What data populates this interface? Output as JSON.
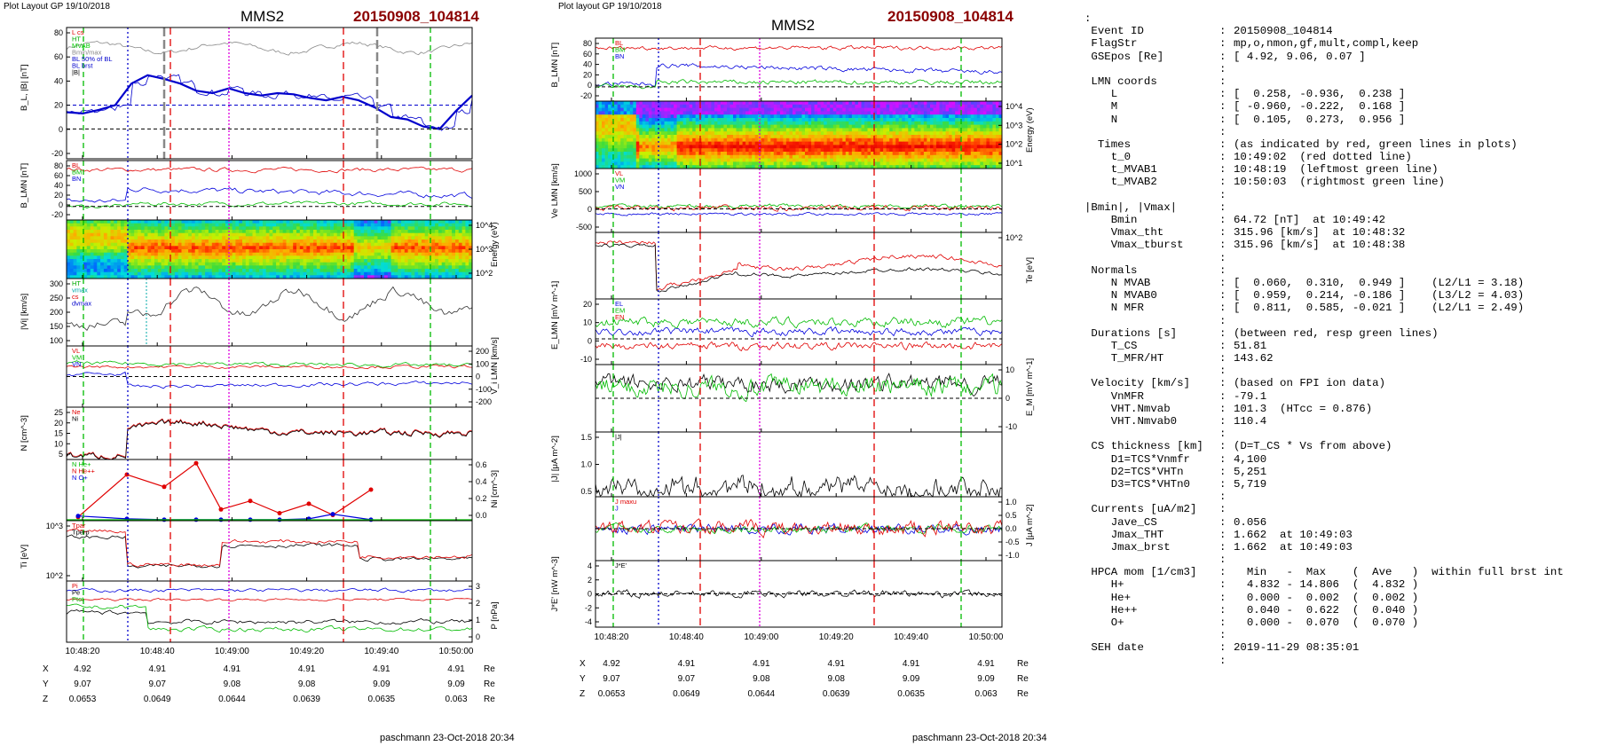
{
  "left_panel": {
    "header": "Plot Layout GP 19/10/2018",
    "title": "MMS2",
    "event": "20150908_104814",
    "footer": "paschmann 23-Oct-2018 20:34",
    "time_ticks": [
      "10:48:20",
      "10:48:40",
      "10:49:00",
      "10:49:20",
      "10:49:40",
      "10:50:00"
    ],
    "pos_rows": [
      {
        "label": "X",
        "values": [
          "4.92",
          "4.91",
          "4.91",
          "4.91",
          "4.91",
          "4.91"
        ],
        "unit": "Re"
      },
      {
        "label": "Y",
        "values": [
          "9.07",
          "9.07",
          "9.08",
          "9.08",
          "9.09",
          "9.09"
        ],
        "unit": "Re"
      },
      {
        "label": "Z",
        "values": [
          "0.0653",
          "0.0649",
          "0.0644",
          "0.0639",
          "0.0635",
          "0.063"
        ],
        "unit": "Re"
      }
    ]
  },
  "middle_panel": {
    "header": "Plot layout GP 19/10/2018",
    "title": "MMS2",
    "event": "20150908_104814",
    "footer": "paschmann 23-Oct-2018 20:34",
    "time_ticks": [
      "10:48:20",
      "10:48:40",
      "10:49:00",
      "10:49:20",
      "10:49:40",
      "10:50:00"
    ],
    "pos_rows": [
      {
        "label": "X",
        "values": [
          "4.92",
          "4.91",
          "4.91",
          "4.91",
          "4.91",
          "4.91"
        ],
        "unit": "Re"
      },
      {
        "label": "Y",
        "values": [
          "9.07",
          "9.07",
          "9.08",
          "9.08",
          "9.09",
          "9.09"
        ],
        "unit": "Re"
      },
      {
        "label": "Z",
        "values": [
          "0.0653",
          "0.0649",
          "0.0644",
          "0.0639",
          "0.0635",
          "0.063"
        ],
        "unit": "Re"
      }
    ]
  },
  "info": [
    {
      "k": "",
      "v": "",
      "colon": true
    },
    {
      "k": " Event ID",
      "v": "20150908_104814"
    },
    {
      "k": " FlagStr",
      "v": "mp,o,nmon,gf,mult,compl,keep"
    },
    {
      "k": " GSEpos [Re]",
      "v": "[ 4.92, 9.06, 0.07 ]"
    },
    {
      "k": "",
      "v": ""
    },
    {
      "k": " LMN coords",
      "v": ""
    },
    {
      "k": "    L",
      "v": "[  0.258, -0.936,  0.238 ]"
    },
    {
      "k": "    M",
      "v": "[ -0.960, -0.222,  0.168 ]"
    },
    {
      "k": "    N",
      "v": "[  0.105,  0.273,  0.956 ]"
    },
    {
      "k": "",
      "v": ""
    },
    {
      "k": "  Times",
      "v": "(as indicated by red, green lines in plots)"
    },
    {
      "k": "    t_0",
      "v": "10:49:02  (red dotted line)"
    },
    {
      "k": "    t_MVAB1",
      "v": "10:48:19  (leftmost green line)"
    },
    {
      "k": "    t_MVAB2",
      "v": "10:50:03  (rightmost green line)"
    },
    {
      "k": "",
      "v": ""
    },
    {
      "k": "|Bmin|, |Vmax|",
      "v": ""
    },
    {
      "k": "    Bmin",
      "v": "64.72 [nT]  at 10:49:42"
    },
    {
      "k": "    Vmax_tht",
      "v": "315.96 [km/s]  at 10:48:32"
    },
    {
      "k": "    Vmax_tburst",
      "v": "315.96 [km/s]  at 10:48:38"
    },
    {
      "k": "",
      "v": ""
    },
    {
      "k": " Normals",
      "v": ""
    },
    {
      "k": "    N MVAB",
      "v": "[  0.060,  0.310,  0.949 ]    (L2/L1 = 3.18)"
    },
    {
      "k": "    N MVAB0",
      "v": "[  0.959,  0.214, -0.186 ]    (L3/L2 = 4.03)"
    },
    {
      "k": "    N MFR",
      "v": "[  0.811,  0.585, -0.021 ]    (L2/L1 = 2.49)"
    },
    {
      "k": "",
      "v": ""
    },
    {
      "k": " Durations [s]",
      "v": "(between red, resp green lines)"
    },
    {
      "k": "    T_CS",
      "v": "51.81"
    },
    {
      "k": "    T_MFR/HT",
      "v": "143.62"
    },
    {
      "k": "",
      "v": ""
    },
    {
      "k": " Velocity [km/s]",
      "v": "(based on FPI ion data)"
    },
    {
      "k": "    VnMFR",
      "v": "-79.1"
    },
    {
      "k": "    VHT.Nmvab",
      "v": "101.3  (HTcc = 0.876)"
    },
    {
      "k": "    VHT.Nmvab0",
      "v": "110.4"
    },
    {
      "k": "",
      "v": ""
    },
    {
      "k": " CS thickness [km]",
      "v": "(D=T_CS * Vs from above)"
    },
    {
      "k": "    D1=TCS*Vnmfr",
      "v": "4,100"
    },
    {
      "k": "    D2=TCS*VHTn",
      "v": "5,251"
    },
    {
      "k": "    D3=TCS*VHTn0",
      "v": "5,719"
    },
    {
      "k": "",
      "v": ""
    },
    {
      "k": " Currents [uA/m2]",
      "v": ""
    },
    {
      "k": "    Jave_CS",
      "v": "0.056"
    },
    {
      "k": "    Jmax_THT",
      "v": "1.662  at 10:49:03"
    },
    {
      "k": "    Jmax_brst",
      "v": "1.662  at 10:49:03"
    },
    {
      "k": "",
      "v": ""
    },
    {
      "k": " HPCA mom [1/cm3]",
      "v": "  Min   -  Max    (  Ave   )  within full brst int"
    },
    {
      "k": "    H+",
      "v": "  4.832 - 14.806  (  4.832 )"
    },
    {
      "k": "    He+",
      "v": "  0.000 -  0.002  (  0.002 )"
    },
    {
      "k": "    He++",
      "v": "  0.040 -  0.622  (  0.040 )"
    },
    {
      "k": "    O+",
      "v": "  0.000 -  0.070  (  0.070 )"
    },
    {
      "k": "",
      "v": ""
    },
    {
      "k": " SEH date",
      "v": "2019-11-29 08:35:01"
    },
    {
      "k": "",
      "v": ""
    }
  ],
  "chart_data": [
    {
      "type": "line",
      "panel": "left",
      "ylabel": "B_L, |B| [nT]",
      "yticks": [
        "80",
        "60",
        "40",
        "20",
        "0",
        "-20"
      ],
      "legend": [
        "L cs",
        "HT",
        "MVAB",
        "Bmin/max",
        "BL 50% of BL",
        "BL brst",
        "|B|"
      ],
      "colors": [
        "#e00000",
        "#00aa00",
        "#00cc00",
        "#888888",
        "#0000cc",
        "#0000cc",
        "#000000"
      ],
      "series": [
        {
          "values": [
            68,
            70,
            72,
            70,
            67,
            69,
            71,
            70,
            66,
            64,
            67,
            69,
            68,
            66,
            65,
            67,
            70,
            69,
            66,
            68,
            71,
            73,
            70,
            68,
            69,
            70
          ]
        },
        {
          "values": [
            14,
            13,
            16,
            20,
            38,
            45,
            42,
            38,
            32,
            30,
            34,
            30,
            28,
            30,
            29,
            26,
            24,
            27,
            24,
            18,
            10,
            8,
            2,
            0,
            15,
            28
          ]
        }
      ]
    },
    {
      "type": "line",
      "panel": "left",
      "ylabel": "B_LMN [nT]",
      "yticks": [
        "80",
        "60",
        "40",
        "20",
        "0",
        "-20"
      ],
      "legend": [
        "BL",
        "BM",
        "BN"
      ],
      "colors": [
        "#e00000",
        "#00bb00",
        "#0000dd"
      ]
    },
    {
      "type": "heatmap",
      "panel": "left",
      "ylabel": "Energy (eV)",
      "yticks": [
        "10^4",
        "10^3",
        "10^2"
      ]
    },
    {
      "type": "line",
      "panel": "left",
      "ylabel": "|Vi| [km/s]",
      "yticks": [
        "300",
        "250",
        "200",
        "150",
        "100"
      ],
      "legend": [
        "HT",
        "vmax",
        "cs",
        "dvmax"
      ],
      "colors": [
        "#00aa00",
        "#00aaaa",
        "#e00000",
        "#0000cc"
      ]
    },
    {
      "type": "line",
      "panel": "left",
      "ylabel": "V_i LMN [km/s]",
      "yticks": [
        "200",
        "100",
        "0",
        "-100",
        "-200"
      ],
      "legend": [
        "VL",
        "VM",
        "VN"
      ],
      "colors": [
        "#e00000",
        "#00bb00",
        "#0000dd"
      ]
    },
    {
      "type": "line",
      "panel": "left",
      "ylabel": "N [cm^-3]",
      "yticks": [
        "25",
        "20",
        "15",
        "10",
        "5"
      ],
      "legend": [
        "Ne",
        "Ni"
      ],
      "colors": [
        "#e00000",
        "#000000"
      ]
    },
    {
      "type": "line",
      "panel": "left",
      "ylabel": "Ni [cm^-3]",
      "yticks": [
        "0.6",
        "0.4",
        "0.2",
        "0.0"
      ],
      "legend": [
        "N He+",
        "N He++",
        "N O+"
      ],
      "colors": [
        "#00bb00",
        "#e00000",
        "#0000dd"
      ],
      "series": [
        {
          "name": "N He++",
          "x": [
            "10:48:14",
            "10:48:30",
            "10:48:44",
            "10:48:54",
            "10:49:06",
            "10:49:18",
            "10:49:30",
            "10:49:42",
            "10:49:52",
            "10:50:06"
          ],
          "values": [
            0.04,
            0.49,
            0.36,
            0.61,
            0.12,
            0.21,
            0.08,
            0.18,
            0.06,
            0.33
          ]
        },
        {
          "name": "N O+",
          "x": [
            "10:48:14",
            "10:48:30",
            "10:48:44",
            "10:48:54",
            "10:49:06",
            "10:49:18",
            "10:49:30",
            "10:49:42",
            "10:49:52",
            "10:50:06"
          ],
          "values": [
            0.05,
            0.02,
            0.01,
            0.01,
            0.01,
            0.01,
            0.01,
            0.02,
            0.07,
            0.01
          ]
        }
      ]
    },
    {
      "type": "line",
      "panel": "left",
      "ylabel": "Ti [eV]",
      "yticks": [
        "10^3",
        "10^2"
      ],
      "legend": [
        "Tpar",
        "Tperp"
      ],
      "colors": [
        "#e00000",
        "#000000"
      ]
    },
    {
      "type": "line",
      "panel": "left",
      "ylabel": "P [nPa]",
      "yticks": [
        "3",
        "2",
        "1",
        "0"
      ],
      "legend": [
        "Pi",
        "Pe",
        "Ptot"
      ],
      "colors": [
        "#e00000",
        "#000000",
        "#00bb00"
      ]
    },
    {
      "type": "line",
      "panel": "middle",
      "ylabel": "B_LMN [nT]",
      "yticks": [
        "80",
        "60",
        "40",
        "20",
        "0",
        "-20"
      ],
      "legend": [
        "BL",
        "BM",
        "BN"
      ],
      "colors": [
        "#e00000",
        "#00bb00",
        "#0000dd"
      ]
    },
    {
      "type": "heatmap",
      "panel": "middle",
      "ylabel": "Energy (eV)",
      "yticks": [
        "10^4",
        "10^3",
        "10^2",
        "10^1"
      ]
    },
    {
      "type": "line",
      "panel": "middle",
      "ylabel": "Ve LMN [km/s]",
      "yticks": [
        "1000",
        "500",
        "0",
        "-500"
      ],
      "legend": [
        "VL",
        "VM",
        "VN"
      ],
      "colors": [
        "#e00000",
        "#00bb00",
        "#0000dd"
      ]
    },
    {
      "type": "line",
      "panel": "middle",
      "ylabel": "Te [eV]",
      "yticks": [
        "10^2"
      ],
      "colors": [
        "#e00000",
        "#000000"
      ]
    },
    {
      "type": "line",
      "panel": "middle",
      "ylabel": "E_LMN [mV m^-1]",
      "yticks": [
        "20",
        "10",
        "0",
        "-10"
      ],
      "legend": [
        "EL",
        "EM",
        "EN"
      ],
      "colors": [
        "#0000dd",
        "#00bb00",
        "#e00000"
      ]
    },
    {
      "type": "line",
      "panel": "middle",
      "ylabel": "E_M [mV m^-1]",
      "yticks": [
        "10",
        "0",
        "-10"
      ],
      "colors": [
        "#000000",
        "#00bb00"
      ]
    },
    {
      "type": "line",
      "panel": "middle",
      "ylabel": "|J| [μA m^-2]",
      "yticks": [
        "1.5",
        "1.0",
        "0.5"
      ],
      "legend": [
        "|J|"
      ],
      "colors": [
        "#000000"
      ]
    },
    {
      "type": "line",
      "panel": "middle",
      "ylabel": "J [μA m^-2]",
      "yticks": [
        "1.0",
        "0.5",
        "0.0",
        "-0.5",
        "-1.0"
      ],
      "legend": [
        "J maxu",
        "J"
      ],
      "colors": [
        "#e00000",
        "#0000dd",
        "#00bb00"
      ]
    },
    {
      "type": "line",
      "panel": "middle",
      "ylabel": "J*E' [nW m^-3]",
      "yticks": [
        "4",
        "2",
        "0",
        "-2",
        "-4"
      ],
      "legend": [
        "J*E'"
      ],
      "colors": [
        "#000000"
      ]
    }
  ]
}
